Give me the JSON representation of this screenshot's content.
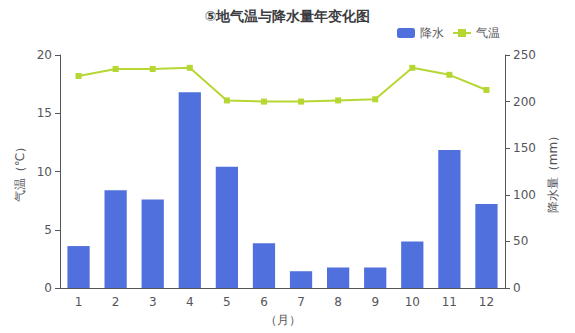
{
  "chart_data": {
    "type": "bar",
    "title": "⑤地气温与降水量年变化图",
    "x_label": "（月）",
    "y_label": "气温（℃）",
    "y2_label": "降水量（mm）",
    "categories": [
      "1",
      "2",
      "3",
      "4",
      "5",
      "6",
      "7",
      "8",
      "9",
      "10",
      "11",
      "12"
    ],
    "series": [
      {
        "name": "降水",
        "type": "bar",
        "axis": "y2",
        "values": [
          45,
          105,
          95,
          210,
          130,
          48,
          18,
          22,
          22,
          50,
          148,
          90
        ]
      },
      {
        "name": "气温",
        "type": "line",
        "marker": "square",
        "values": [
          18.2,
          18.8,
          18.8,
          18.9,
          16.1,
          16.0,
          16.0,
          16.1,
          16.2,
          18.9,
          18.3,
          17.0
        ]
      }
    ],
    "ylim": [
      0,
      20
    ],
    "yticks": [
      0,
      5,
      10,
      15,
      20
    ],
    "y2lim": [
      0,
      250
    ],
    "y2ticks": [
      0,
      50,
      100,
      150,
      200,
      250
    ],
    "grid": false,
    "legend": "upper right"
  }
}
